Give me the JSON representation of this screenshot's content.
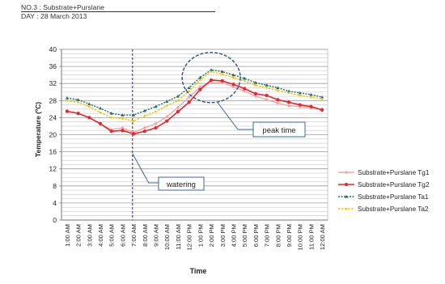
{
  "header": {
    "line1": "NO.3 : Substrate+Purslane",
    "line2": "DAY : 28 March 2013"
  },
  "annotations": {
    "peak_time": "peak time",
    "watering": "watering"
  },
  "chart_data": {
    "type": "line",
    "title": "",
    "xlabel": "Time",
    "ylabel": "Temperature (ºC)",
    "ylim": [
      0,
      40
    ],
    "yticks": [
      0,
      4,
      8,
      12,
      16,
      20,
      24,
      28,
      32,
      36,
      40
    ],
    "grid": true,
    "legend_position": "right",
    "categories": [
      "1:00 AM",
      "2:00 AM",
      "3:00 AM",
      "4:00 AM",
      "5:00 AM",
      "6:00 AM",
      "7:00 AM",
      "8:00 AM",
      "9:00 AM",
      "10:00 AM",
      "11:00 AM",
      "12:00 PM",
      "1:00 PM",
      "2:00 PM",
      "3:00 PM",
      "4:00 PM",
      "5:00 PM",
      "6:00 PM",
      "7:00 PM",
      "8:00 PM",
      "9:00 PM",
      "10:00 PM",
      "11:00 PM",
      "12:00 AM"
    ],
    "series": [
      {
        "name": "Substrate+Purslane Tg1",
        "color": "#f4a6a6",
        "marker": "diamond",
        "values": [
          25.5,
          25.0,
          24.0,
          22.5,
          21.2,
          21.6,
          20.6,
          21.6,
          22.6,
          24.2,
          26.4,
          28.8,
          31.2,
          32.2,
          32.2,
          31.2,
          30.2,
          29.0,
          28.2,
          27.4,
          26.8,
          26.6,
          26.3,
          26.0
        ]
      },
      {
        "name": "Substrate+Purslane Tg2",
        "color": "#e8242c",
        "marker": "circle",
        "values": [
          25.5,
          25.0,
          24.0,
          22.6,
          20.8,
          21.0,
          20.2,
          20.8,
          21.6,
          23.2,
          25.4,
          27.6,
          30.6,
          32.8,
          32.6,
          31.8,
          30.8,
          29.6,
          29.2,
          28.2,
          27.6,
          27.0,
          26.6,
          25.8
        ]
      },
      {
        "name": "Substrate+Purslane Ta1",
        "color": "#1f6e6e",
        "marker": "triangle",
        "values": [
          28.6,
          28.2,
          27.2,
          26.2,
          25.0,
          24.6,
          24.6,
          25.6,
          26.6,
          27.8,
          29.0,
          31.0,
          33.4,
          35.2,
          34.8,
          34.0,
          33.2,
          32.2,
          31.6,
          31.0,
          30.2,
          29.8,
          29.4,
          28.8
        ]
      },
      {
        "name": "Substrate+Purslane Ta2",
        "color": "#f5c400",
        "marker": "dot",
        "values": [
          28.0,
          27.6,
          26.6,
          25.2,
          24.0,
          23.8,
          23.2,
          24.4,
          25.4,
          26.8,
          28.0,
          30.2,
          32.8,
          34.8,
          34.2,
          33.4,
          32.6,
          31.6,
          31.0,
          30.4,
          29.8,
          29.2,
          28.8,
          28.4
        ]
      }
    ]
  }
}
